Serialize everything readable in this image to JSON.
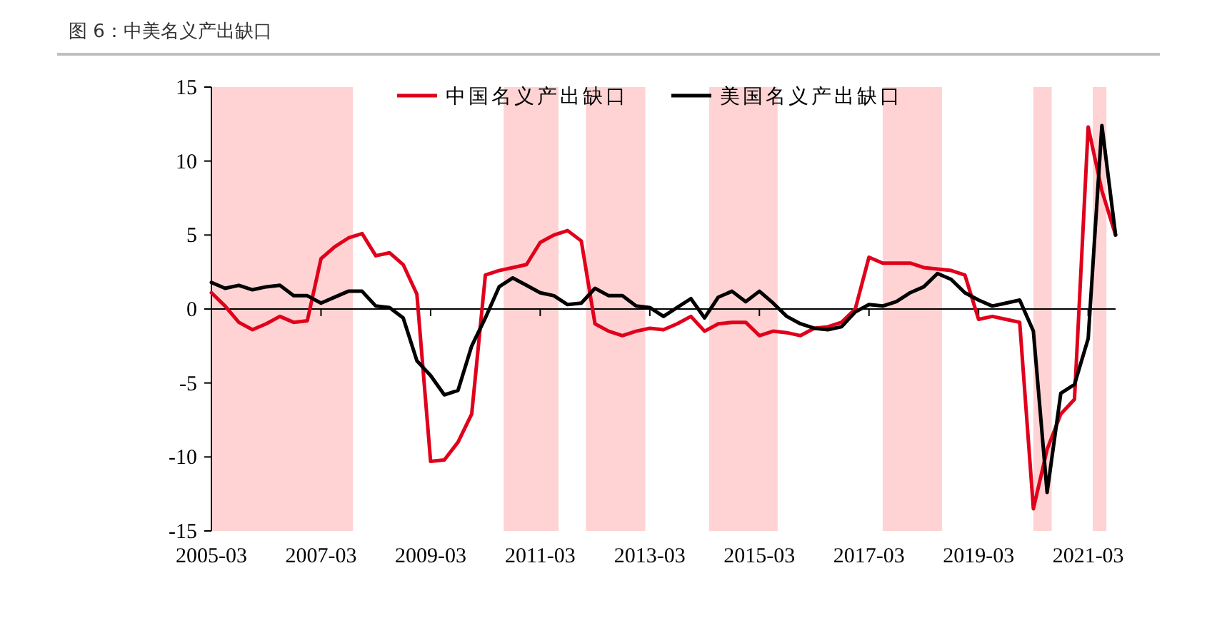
{
  "chart_data": {
    "type": "line",
    "title": "图 6：中美名义产出缺口",
    "x": [
      "2005-03",
      "2005-06",
      "2005-09",
      "2005-12",
      "2006-03",
      "2006-06",
      "2006-09",
      "2006-12",
      "2007-03",
      "2007-06",
      "2007-09",
      "2007-12",
      "2008-03",
      "2008-06",
      "2008-09",
      "2008-12",
      "2009-03",
      "2009-06",
      "2009-09",
      "2009-12",
      "2010-03",
      "2010-06",
      "2010-09",
      "2010-12",
      "2011-03",
      "2011-06",
      "2011-09",
      "2011-12",
      "2012-03",
      "2012-06",
      "2012-09",
      "2012-12",
      "2013-03",
      "2013-06",
      "2013-09",
      "2013-12",
      "2014-03",
      "2014-06",
      "2014-09",
      "2014-12",
      "2015-03",
      "2015-06",
      "2015-09",
      "2015-12",
      "2016-03",
      "2016-06",
      "2016-09",
      "2016-12",
      "2017-03",
      "2017-06",
      "2017-09",
      "2017-12",
      "2018-03",
      "2018-06",
      "2018-09",
      "2018-12",
      "2019-03",
      "2019-06",
      "2019-09",
      "2019-12",
      "2020-03",
      "2020-06",
      "2020-09",
      "2020-12",
      "2021-03",
      "2021-06",
      "2021-09"
    ],
    "series": [
      {
        "name": "中国名义产出缺口",
        "color": "#e0001b",
        "values": [
          1.1,
          0.2,
          -0.9,
          -1.4,
          -1.0,
          -0.5,
          -0.9,
          -0.8,
          3.4,
          4.2,
          4.8,
          5.1,
          3.6,
          3.8,
          3.0,
          1.0,
          -10.3,
          -10.2,
          -9.0,
          -7.1,
          2.3,
          2.6,
          2.8,
          3.0,
          4.5,
          5.0,
          5.3,
          4.6,
          -1.0,
          -1.5,
          -1.8,
          -1.5,
          -1.3,
          -1.4,
          -1.0,
          -0.5,
          -1.5,
          -1.0,
          -0.9,
          -0.9,
          -1.8,
          -1.5,
          -1.6,
          -1.8,
          -1.3,
          -1.2,
          -0.9,
          0,
          3.5,
          3.1,
          3.1,
          3.1,
          2.8,
          2.7,
          2.6,
          2.3,
          -0.7,
          -0.5,
          -0.7,
          -0.9,
          -13.5,
          -9.5,
          -7.1,
          -6.1,
          12.3,
          8.0,
          5.0
        ]
      },
      {
        "name": "美国名义产出缺口",
        "color": "#000000",
        "values": [
          1.8,
          1.4,
          1.6,
          1.3,
          1.5,
          1.6,
          0.9,
          0.9,
          0.4,
          0.8,
          1.2,
          1.2,
          0.2,
          0.1,
          -0.6,
          -3.5,
          -4.5,
          -5.8,
          -5.5,
          -2.5,
          -0.6,
          1.5,
          2.1,
          1.6,
          1.1,
          0.9,
          0.3,
          0.4,
          1.4,
          0.9,
          0.9,
          0.2,
          0.1,
          -0.5,
          0.1,
          0.7,
          -0.6,
          0.8,
          1.2,
          0.5,
          1.2,
          0.4,
          -0.5,
          -1.0,
          -1.3,
          -1.4,
          -1.2,
          -0.2,
          0.3,
          0.2,
          0.5,
          1.1,
          1.5,
          2.4,
          2.0,
          1.1,
          0.6,
          0.2,
          0.4,
          0.6,
          -1.5,
          -12.4,
          -5.7,
          -5.1,
          -2.0,
          12.4,
          5.0
        ]
      }
    ],
    "xlim": [
      "2005-03",
      "2021-09"
    ],
    "xticks": [
      "2005-03",
      "2007-03",
      "2009-03",
      "2011-03",
      "2013-03",
      "2015-03",
      "2017-03",
      "2019-03",
      "2021-03"
    ],
    "ylim": [
      -15,
      15
    ],
    "yticks": [
      -15,
      -10,
      -5,
      0,
      5,
      10,
      15
    ],
    "bands": [
      {
        "axis": "x",
        "from": "2005-03",
        "to": "2007-10",
        "color": "#ffd3d3"
      },
      {
        "axis": "x",
        "from": "2010-07",
        "to": "2011-07",
        "color": "#ffd3d3"
      },
      {
        "axis": "x",
        "from": "2012-01",
        "to": "2013-02",
        "color": "#ffd3d3"
      },
      {
        "axis": "x",
        "from": "2014-04",
        "to": "2015-07",
        "color": "#ffd3d3"
      },
      {
        "axis": "x",
        "from": "2017-06",
        "to": "2018-07",
        "color": "#ffd3d3"
      },
      {
        "axis": "x",
        "from": "2020-03",
        "to": "2020-07",
        "color": "#ffd3d3"
      },
      {
        "axis": "x",
        "from": "2021-04",
        "to": "2021-07",
        "color": "#ffd3d3"
      }
    ],
    "legend": "top",
    "marker": "none",
    "line_style": "solid"
  }
}
